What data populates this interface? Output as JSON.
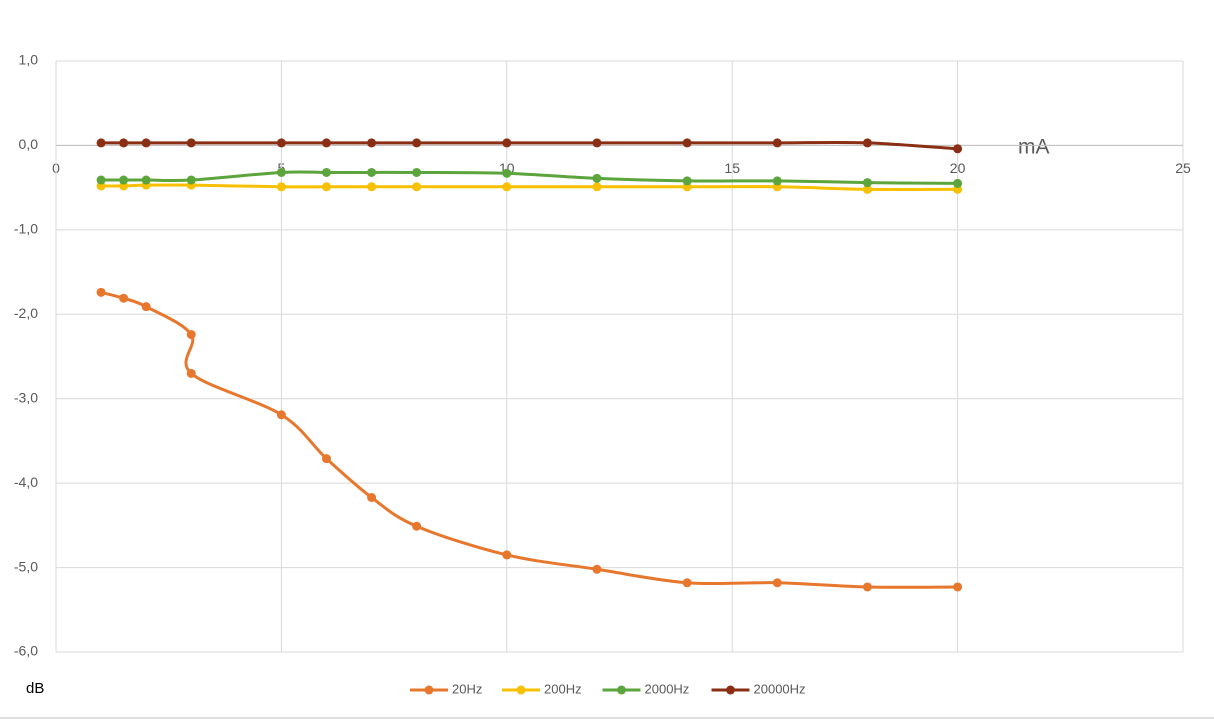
{
  "chart_data": {
    "type": "line",
    "x_label": "mA",
    "y_label": "dB",
    "xlim": [
      0,
      25
    ],
    "xticks": [
      0,
      5,
      10,
      15,
      20,
      25
    ],
    "ylim": [
      -6,
      1
    ],
    "yticks": [
      {
        "value": 1,
        "label": "1,0"
      },
      {
        "value": 0,
        "label": "0,0"
      },
      {
        "value": -1,
        "label": "-1,0"
      },
      {
        "value": -2,
        "label": "-2,0"
      },
      {
        "value": -3,
        "label": "-3,0"
      },
      {
        "value": -4,
        "label": "-4,0"
      },
      {
        "value": -5,
        "label": "-5,0"
      },
      {
        "value": -6,
        "label": "-6,0"
      }
    ],
    "grid": true,
    "legend": "bottom",
    "series": [
      {
        "name": "20Hz",
        "color": "#e8772e",
        "x": [
          1,
          1.5,
          2,
          3,
          3,
          5,
          6,
          7,
          8,
          10,
          12,
          14,
          16,
          18,
          20
        ],
        "values": [
          -1.74,
          -1.81,
          -1.91,
          -2.24,
          -2.7,
          -3.19,
          -3.71,
          -4.17,
          -4.51,
          -4.85,
          -5.02,
          -5.18,
          -5.18,
          -5.23,
          -5.23
        ]
      },
      {
        "name": "200Hz",
        "color": "#f7c000",
        "x": [
          1,
          1.5,
          2,
          3,
          5,
          6,
          7,
          8,
          10,
          12,
          14,
          16,
          18,
          20
        ],
        "values": [
          -0.48,
          -0.48,
          -0.47,
          -0.47,
          -0.49,
          -0.49,
          -0.49,
          -0.49,
          -0.49,
          -0.49,
          -0.49,
          -0.49,
          -0.52,
          -0.52
        ]
      },
      {
        "name": "2000Hz",
        "color": "#5ca43c",
        "x": [
          1,
          1.5,
          2,
          3,
          5,
          6,
          7,
          8,
          10,
          12,
          14,
          16,
          18,
          20
        ],
        "values": [
          -0.41,
          -0.41,
          -0.41,
          -0.41,
          -0.32,
          -0.32,
          -0.32,
          -0.32,
          -0.33,
          -0.39,
          -0.42,
          -0.42,
          -0.44,
          -0.45
        ]
      },
      {
        "name": "20000Hz",
        "color": "#8b2f14",
        "x": [
          1,
          1.5,
          2,
          3,
          5,
          6,
          7,
          8,
          10,
          12,
          14,
          16,
          18,
          20
        ],
        "values": [
          0.03,
          0.03,
          0.03,
          0.03,
          0.03,
          0.03,
          0.03,
          0.03,
          0.03,
          0.03,
          0.03,
          0.03,
          0.03,
          -0.04
        ]
      }
    ]
  }
}
